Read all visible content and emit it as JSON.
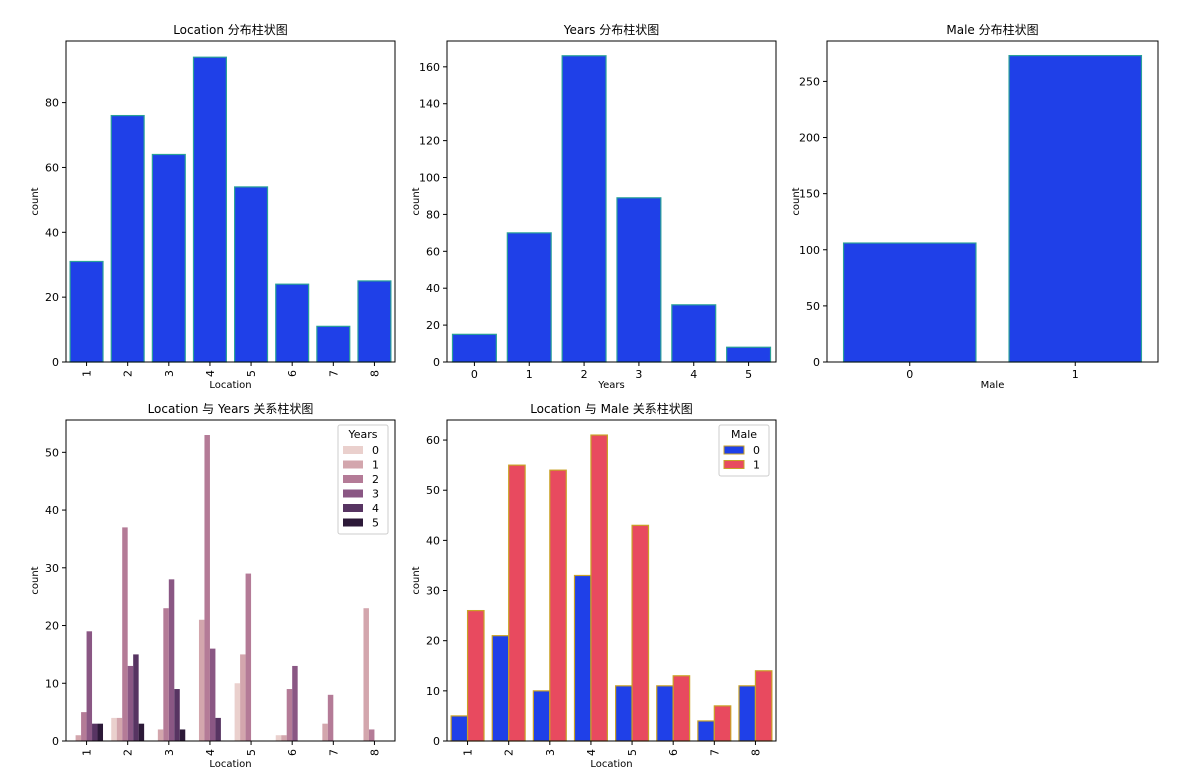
{
  "colors": {
    "bar_blue": "#1f40e8",
    "bar_edge": "#2aa198",
    "male0": "#1f40e8",
    "male1": "#e84a5f",
    "male_edge": "#c9a227",
    "years_palette": [
      "#ead0cd",
      "#d3a6ad",
      "#b47b97",
      "#8a5784",
      "#573462",
      "#2c1938"
    ]
  },
  "chart_data": [
    {
      "id": "location",
      "type": "bar",
      "title": "Location 分布柱状图",
      "xlabel": "Location",
      "ylabel": "count",
      "categories": [
        "1",
        "2",
        "3",
        "4",
        "5",
        "6",
        "7",
        "8"
      ],
      "values": [
        31,
        76,
        64,
        94,
        54,
        24,
        11,
        25
      ],
      "ylim": [
        0,
        99
      ],
      "yticks": [
        0,
        20,
        40,
        60,
        80
      ],
      "rotate_xticks": true
    },
    {
      "id": "years",
      "type": "bar",
      "title": "Years 分布柱状图",
      "xlabel": "Years",
      "ylabel": "count",
      "categories": [
        "0",
        "1",
        "2",
        "3",
        "4",
        "5"
      ],
      "values": [
        15,
        70,
        166,
        89,
        31,
        8
      ],
      "ylim": [
        0,
        174
      ],
      "yticks": [
        0,
        20,
        40,
        60,
        80,
        100,
        120,
        140,
        160
      ],
      "rotate_xticks": false
    },
    {
      "id": "male",
      "type": "bar",
      "title": "Male 分布柱状图",
      "xlabel": "Male",
      "ylabel": "count",
      "categories": [
        "0",
        "1"
      ],
      "values": [
        106,
        273
      ],
      "ylim": [
        0,
        286
      ],
      "yticks": [
        0,
        50,
        100,
        150,
        200,
        250
      ],
      "rotate_xticks": false
    },
    {
      "id": "loc_years",
      "type": "bar",
      "title": "Location 与 Years 关系柱状图",
      "xlabel": "Location",
      "ylabel": "count",
      "categories": [
        "1",
        "2",
        "3",
        "4",
        "5",
        "6",
        "7",
        "8"
      ],
      "legend_title": "Years",
      "legend_position": "top-right",
      "series": [
        {
          "name": "0",
          "values": [
            0,
            4,
            0,
            0,
            10,
            1,
            0,
            0
          ]
        },
        {
          "name": "1",
          "values": [
            1,
            4,
            2,
            21,
            15,
            1,
            3,
            23
          ]
        },
        {
          "name": "2",
          "values": [
            5,
            37,
            23,
            53,
            29,
            9,
            8,
            2
          ]
        },
        {
          "name": "3",
          "values": [
            19,
            13,
            28,
            16,
            0,
            13,
            0,
            0
          ]
        },
        {
          "name": "4",
          "values": [
            3,
            15,
            9,
            4,
            0,
            0,
            0,
            0
          ]
        },
        {
          "name": "5",
          "values": [
            3,
            3,
            2,
            0,
            0,
            0,
            0,
            0
          ]
        }
      ],
      "ylim": [
        0,
        55.6
      ],
      "yticks": [
        0,
        10,
        20,
        30,
        40,
        50
      ],
      "rotate_xticks": true
    },
    {
      "id": "loc_male",
      "type": "bar",
      "title": "Location 与 Male 关系柱状图",
      "xlabel": "Location",
      "ylabel": "count",
      "categories": [
        "1",
        "2",
        "3",
        "4",
        "5",
        "6",
        "7",
        "8"
      ],
      "legend_title": "Male",
      "legend_position": "top-right",
      "series": [
        {
          "name": "0",
          "values": [
            5,
            21,
            10,
            33,
            11,
            11,
            4,
            11
          ]
        },
        {
          "name": "1",
          "values": [
            26,
            55,
            54,
            61,
            43,
            13,
            7,
            14
          ]
        }
      ],
      "ylim": [
        0,
        64
      ],
      "yticks": [
        0,
        10,
        20,
        30,
        40,
        50,
        60
      ],
      "rotate_xticks": true
    }
  ]
}
